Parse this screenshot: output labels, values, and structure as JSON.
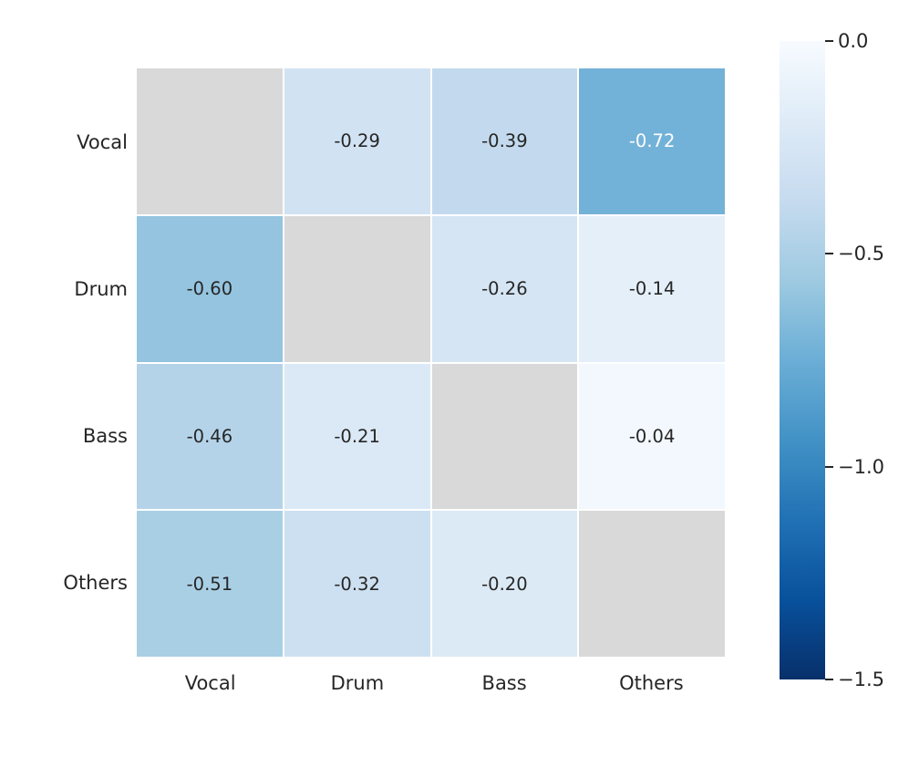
{
  "chart_data": {
    "type": "heatmap",
    "row_labels": [
      "Vocal",
      "Drum",
      "Bass",
      "Others"
    ],
    "col_labels": [
      "Vocal",
      "Drum",
      "Bass",
      "Others"
    ],
    "values": [
      [
        null,
        -0.29,
        -0.39,
        -0.72
      ],
      [
        -0.6,
        null,
        -0.26,
        -0.14
      ],
      [
        -0.46,
        -0.21,
        null,
        -0.04
      ],
      [
        -0.51,
        -0.32,
        -0.2,
        null
      ]
    ],
    "labels": [
      [
        "",
        "-0.29",
        "-0.39",
        "-0.72"
      ],
      [
        "-0.60",
        "",
        "-0.26",
        "-0.14"
      ],
      [
        "-0.46",
        "-0.21",
        "",
        "-0.04"
      ],
      [
        "-0.51",
        "-0.32",
        "-0.20",
        ""
      ]
    ],
    "vmin": -1.5,
    "vmax": 0.0,
    "colorbar": {
      "tick_labels": [
        "0.0",
        "−0.5",
        "−1.0",
        "−1.5"
      ],
      "tick_values": [
        0.0,
        -0.5,
        -1.0,
        -1.5
      ],
      "tick_positions": [
        0,
        33.333,
        66.667,
        100
      ]
    },
    "palette": {
      "masked_cell": "#d9d9d9",
      "cell_text_dark": "#262626",
      "cell_text_light": "#ffffff",
      "tick_color": "#262626",
      "colormap_name": "Blues",
      "colormap_stops": [
        "#f7fbff",
        "#deebf7",
        "#c6dbef",
        "#9ecae1",
        "#6baed6",
        "#4292c6",
        "#2171b5",
        "#08519c",
        "#08306b"
      ]
    }
  }
}
